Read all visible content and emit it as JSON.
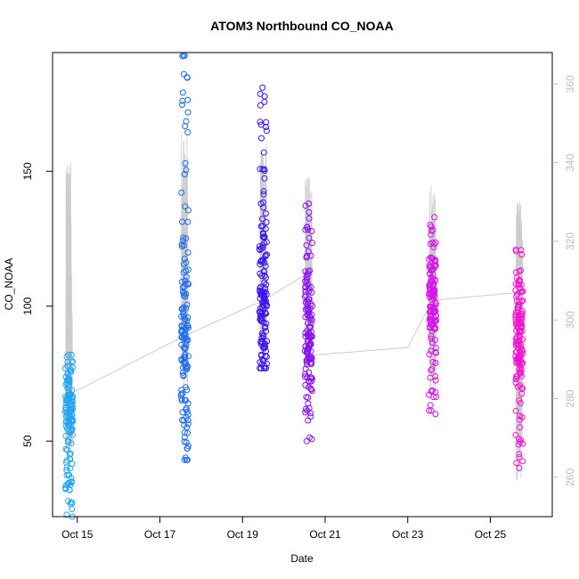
{
  "chart_data": {
    "type": "scatter",
    "title": "ATOM3 Northbound CO_NOAA",
    "xlabel": "Date",
    "ylabel": "CO_NOAA",
    "x_ticks": [
      "Oct 15",
      "Oct 17",
      "Oct 19",
      "Oct 21",
      "Oct 23",
      "Oct 25"
    ],
    "y_ticks": [
      "50",
      "100",
      "150"
    ],
    "y2_ticks": [
      "260",
      "280",
      "300",
      "320",
      "340",
      "360"
    ],
    "xlim_day": [
      14.4,
      26.5
    ],
    "ylim": [
      22,
      194
    ],
    "y2lim": [
      250,
      368
    ],
    "grid": false,
    "legend": "none",
    "colors": {
      "points_start": "#00a6ff",
      "points_mid": "#6a00ff",
      "points_end": "#ff00d8",
      "secondary_line": "#cccccc",
      "right_axis": "#bdbdbd"
    },
    "series": [
      {
        "marker": "circle",
        "groups": [
          {
            "day": 14.8,
            "min": 22,
            "max": 82,
            "center": 64,
            "color": "#24a4f5"
          },
          {
            "day": 17.6,
            "min": 43,
            "max": 193,
            "center": 82,
            "color": "#1a6af2"
          },
          {
            "day": 19.5,
            "min": 77,
            "max": 181,
            "center": 100,
            "color": "#3a12f0"
          },
          {
            "day": 20.6,
            "min": 50,
            "max": 138,
            "center": 90,
            "color": "#8a10f0"
          },
          {
            "day": 23.6,
            "min": 60,
            "max": 133,
            "center": 100,
            "color": "#d414e8"
          },
          {
            "day": 25.7,
            "min": 40,
            "max": 121,
            "center": 88,
            "color": "#f510d0"
          }
        ]
      },
      {
        "line": true,
        "secondary_axis": true,
        "groups": [
          {
            "day": 14.8,
            "min": 265,
            "max": 340,
            "center": 281
          },
          {
            "day": 17.6,
            "min": 282,
            "max": 349,
            "center": 297
          },
          {
            "day": 19.5,
            "min": 292,
            "max": 345,
            "center": 307
          },
          {
            "day": 20.6,
            "min": 288,
            "max": 338,
            "center": 306
          },
          {
            "day": 23.6,
            "min": 279,
            "max": 335,
            "center": 304
          },
          {
            "day": 25.7,
            "min": 259,
            "max": 331,
            "center": 305
          }
        ],
        "connect": [
          [
            14.8,
            281
          ],
          [
            17.6,
            296
          ],
          [
            19.5,
            305
          ],
          [
            20.6,
            312
          ],
          [
            20.6,
            291
          ],
          [
            23.0,
            293
          ],
          [
            23.6,
            305
          ],
          [
            25.7,
            307
          ]
        ]
      }
    ]
  }
}
